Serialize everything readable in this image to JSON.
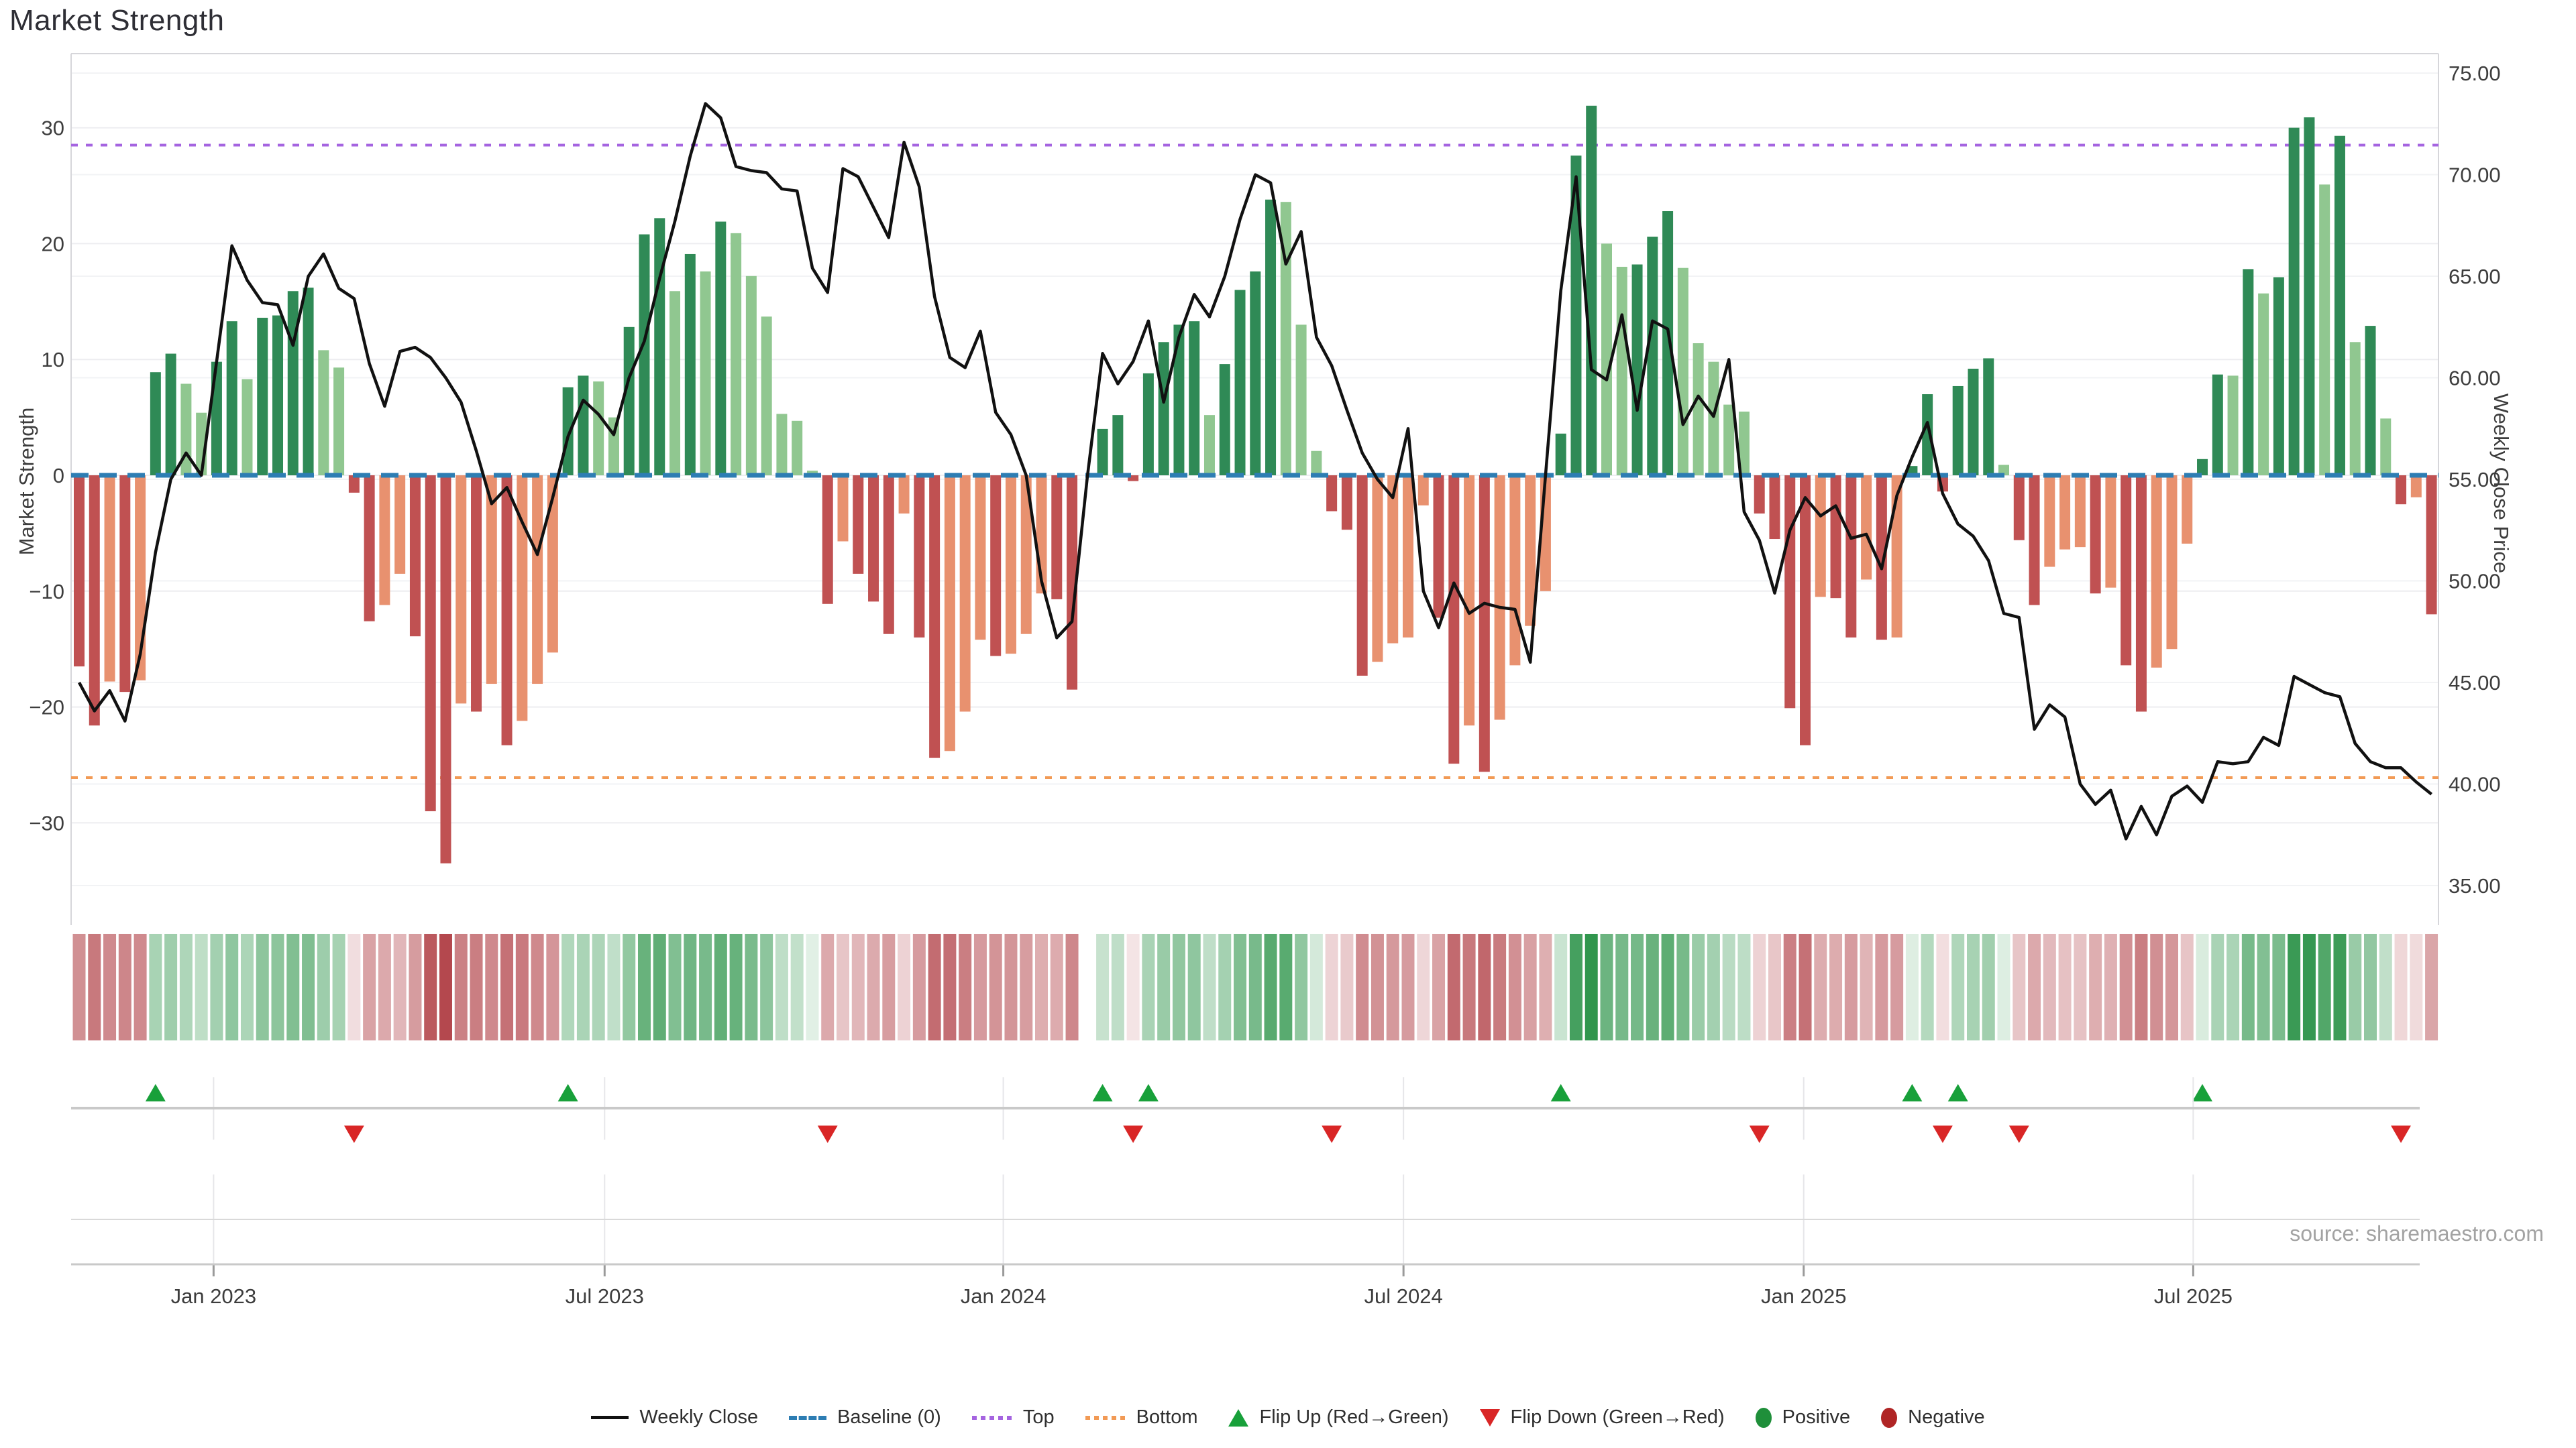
{
  "title": "Market Strength",
  "source": "source: sharemaestro.com",
  "axes": {
    "left_label": "Market Strength",
    "right_label": "Weekly Close Price",
    "left_ticks": [
      30,
      20,
      10,
      0,
      -10,
      -20,
      -30
    ],
    "right_ticks": [
      "75.00",
      "70.00",
      "65.00",
      "60.00",
      "55.00",
      "50.00",
      "45.00",
      "40.00",
      "35.00"
    ],
    "x_ticks": [
      {
        "label": "Jan 2023",
        "week": 8.8
      },
      {
        "label": "Jul 2023",
        "week": 34.4
      },
      {
        "label": "Jan 2024",
        "week": 60.5
      },
      {
        "label": "Jul 2024",
        "week": 86.7
      },
      {
        "label": "Jan 2025",
        "week": 112.9
      },
      {
        "label": "Jul 2025",
        "week": 138.4
      }
    ]
  },
  "colors": {
    "positive_dark": "#2f8a56",
    "positive_light": "#90c790",
    "negative_dark": "#c05152",
    "negative_light": "#e8916f",
    "price_line": "#111111",
    "baseline": "#2d7db3",
    "top_line": "#a564e0",
    "bottom_line": "#f29a55",
    "flip_up": "#18a03a",
    "flip_down": "#d92626",
    "heat_green": "#2b9348",
    "heat_red": "#b4484e",
    "grid": "#ededf0",
    "spine": "#d6d6da"
  },
  "chart_data": {
    "type": "combo bar+line with heatmap strip and flip markers",
    "x_unit": "weekly, Nov 2022 - Oct 2025",
    "ylabel_left": "Market Strength",
    "ylabel_right": "Weekly Close Price",
    "ylim_left": [
      -37.5,
      36.5
    ],
    "ylim_right": [
      35.0,
      75.0
    ],
    "thresholds": {
      "baseline": 0,
      "top": 28.5,
      "bottom": -26.1
    },
    "series": [
      {
        "name": "Market Strength (bars)",
        "type": "bar",
        "values": [
          -16.5,
          -21.6,
          -17.8,
          -18.7,
          -17.7,
          8.9,
          10.5,
          7.9,
          5.4,
          9.8,
          13.3,
          8.3,
          13.6,
          13.8,
          15.9,
          16.2,
          10.8,
          9.3,
          -1.5,
          -12.6,
          -11.2,
          -8.5,
          -13.9,
          -29.0,
          -33.5,
          -19.7,
          -20.4,
          -18.0,
          -23.3,
          -21.2,
          -18.0,
          -15.3,
          7.6,
          8.6,
          8.1,
          5.0,
          12.8,
          20.8,
          22.2,
          15.9,
          19.1,
          17.6,
          21.9,
          20.9,
          17.2,
          13.7,
          5.3,
          4.7,
          0.4,
          -11.1,
          -5.7,
          -8.5,
          -10.9,
          -13.7,
          -3.3,
          -14.0,
          -24.4,
          -23.8,
          -20.4,
          -14.2,
          -15.6,
          -15.4,
          -13.7,
          -10.2,
          -10.7,
          -18.5,
          null,
          4.0,
          5.2,
          -0.5,
          8.8,
          11.5,
          13.0,
          13.3,
          5.2,
          9.6,
          16.0,
          17.6,
          23.8,
          23.6,
          13.0,
          2.1,
          -3.1,
          -4.7,
          -17.3,
          -16.1,
          -14.5,
          -14.0,
          -2.6,
          -12.3,
          -24.9,
          -21.6,
          -25.6,
          -21.1,
          -16.4,
          -13.0,
          -10.0,
          3.6,
          27.6,
          31.9,
          20.0,
          18.0,
          18.2,
          20.6,
          22.8,
          17.9,
          11.4,
          9.8,
          6.1,
          5.5,
          -3.3,
          -5.5,
          -20.1,
          -23.3,
          -10.5,
          -10.6,
          -14.0,
          -9.0,
          -14.2,
          -14.0,
          0.8,
          7.0,
          -1.4,
          7.7,
          9.2,
          10.1,
          0.9,
          -5.6,
          -11.2,
          -7.9,
          -6.4,
          -6.2,
          -10.2,
          -9.7,
          -16.4,
          -20.4,
          -16.6,
          -15.0,
          -5.9,
          1.4,
          8.7,
          8.6,
          17.8,
          15.7,
          17.1,
          30.0,
          30.9,
          25.1,
          29.3,
          11.5,
          12.9,
          4.9,
          -2.5,
          -1.9,
          -12.0
        ]
      },
      {
        "name": "Weekly Close",
        "type": "line",
        "values": [
          45.0,
          43.6,
          44.6,
          43.1,
          46.4,
          51.4,
          55.0,
          56.3,
          55.2,
          60.8,
          66.5,
          64.8,
          63.7,
          63.6,
          61.6,
          65.0,
          66.1,
          64.4,
          63.9,
          60.7,
          58.6,
          61.3,
          61.5,
          61.0,
          60.0,
          58.8,
          56.4,
          53.8,
          54.6,
          52.9,
          51.3,
          54.1,
          57.1,
          58.9,
          58.2,
          57.2,
          60.0,
          61.8,
          64.9,
          67.7,
          70.9,
          73.5,
          72.8,
          70.4,
          70.2,
          70.1,
          69.3,
          69.2,
          65.4,
          64.2,
          70.3,
          69.9,
          68.4,
          66.9,
          71.6,
          69.4,
          64.0,
          61.0,
          60.5,
          62.3,
          58.3,
          57.2,
          55.2,
          50.0,
          47.2,
          48.0,
          55.1,
          61.2,
          59.7,
          60.8,
          62.8,
          58.8,
          62.0,
          64.1,
          63.0,
          65.0,
          67.8,
          70.0,
          69.6,
          65.6,
          67.2,
          62.0,
          60.6,
          58.4,
          56.3,
          55.0,
          54.1,
          57.5,
          49.5,
          47.7,
          49.9,
          48.4,
          48.9,
          48.7,
          48.6,
          46.0,
          55.2,
          64.3,
          69.9,
          60.4,
          59.9,
          63.1,
          58.4,
          62.8,
          62.4,
          57.7,
          59.1,
          58.1,
          60.9,
          53.4,
          52.0,
          49.4,
          52.5,
          54.1,
          53.2,
          53.7,
          52.1,
          52.3,
          50.6,
          54.2,
          56.1,
          57.8,
          54.3,
          52.8,
          52.2,
          51.0,
          48.4,
          48.2,
          42.7,
          43.9,
          43.3,
          40.0,
          39.0,
          39.7,
          37.3,
          38.9,
          37.5,
          39.4,
          39.9,
          39.1,
          41.1,
          41.0,
          41.1,
          42.3,
          41.9,
          45.3,
          44.9,
          44.5,
          44.3,
          42.0,
          41.1,
          40.8,
          40.8,
          40.1,
          39.5
        ]
      }
    ],
    "heatmap": "same weekly strength values rendered as red/green intensity strip",
    "flip_rule": "markers at every sign change of the bar series",
    "legend_position": "bottom center"
  },
  "legend": {
    "items": [
      {
        "label": "Weekly Close",
        "icon": "black-line"
      },
      {
        "label": "Baseline (0)",
        "icon": "blue-dashed-line"
      },
      {
        "label": "Top",
        "icon": "purple-dotted-line"
      },
      {
        "label": "Bottom",
        "icon": "orange-dotted-line"
      },
      {
        "label": "Flip Up (Red→Green)",
        "icon": "green-up-triangle"
      },
      {
        "label": "Flip Down (Green→Red)",
        "icon": "red-down-triangle"
      },
      {
        "label": "Positive",
        "icon": "green-circle"
      },
      {
        "label": "Negative",
        "icon": "dark-red-circle"
      }
    ]
  }
}
